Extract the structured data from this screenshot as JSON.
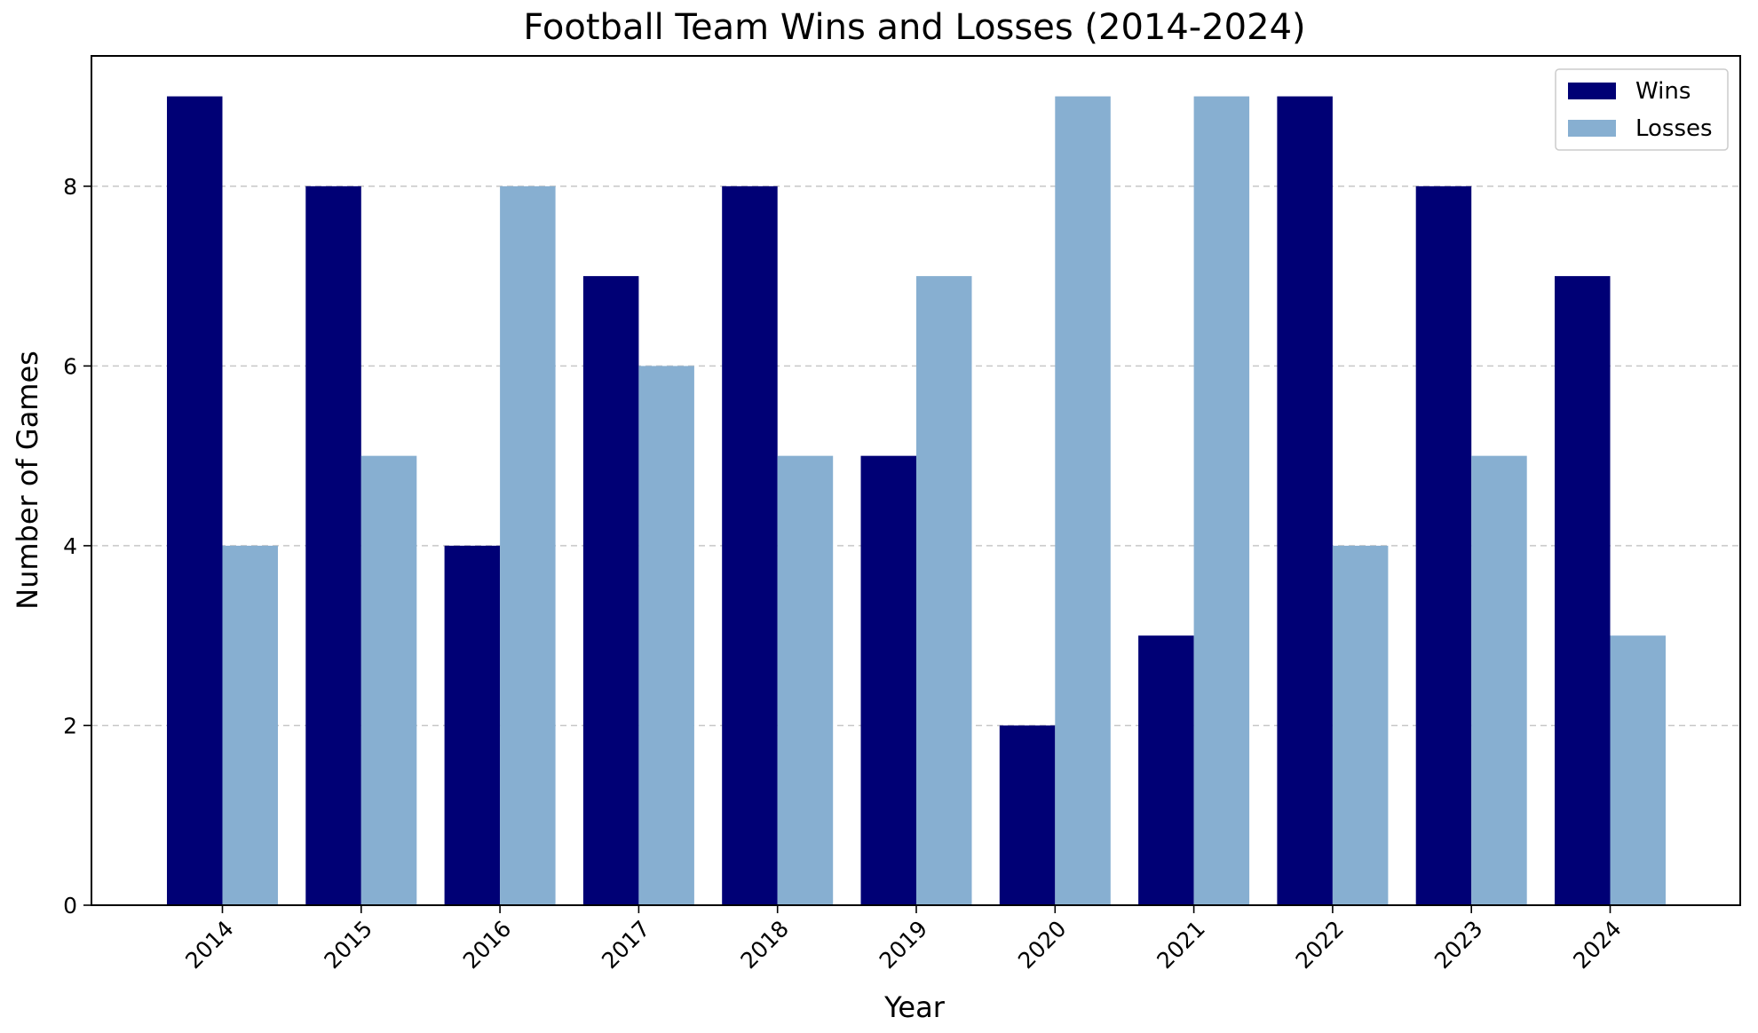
{
  "chart_data": {
    "type": "bar",
    "title": "Football Team Wins and Losses (2014-2024)",
    "xlabel": "Year",
    "ylabel": "Number of Games",
    "categories": [
      "2014",
      "2015",
      "2016",
      "2017",
      "2018",
      "2019",
      "2020",
      "2021",
      "2022",
      "2023",
      "2024"
    ],
    "series": [
      {
        "name": "Wins",
        "color": "#000075",
        "values": [
          9,
          8,
          4,
          7,
          8,
          5,
          2,
          3,
          9,
          8,
          7
        ]
      },
      {
        "name": "Losses",
        "color": "#87afd1",
        "values": [
          4,
          5,
          8,
          6,
          5,
          7,
          9,
          9,
          4,
          5,
          3
        ]
      }
    ],
    "ylim": [
      0,
      9.45
    ],
    "yticks": [
      0,
      2,
      4,
      6,
      8
    ],
    "grid": "y-dashed",
    "legend_position": "top-right"
  }
}
